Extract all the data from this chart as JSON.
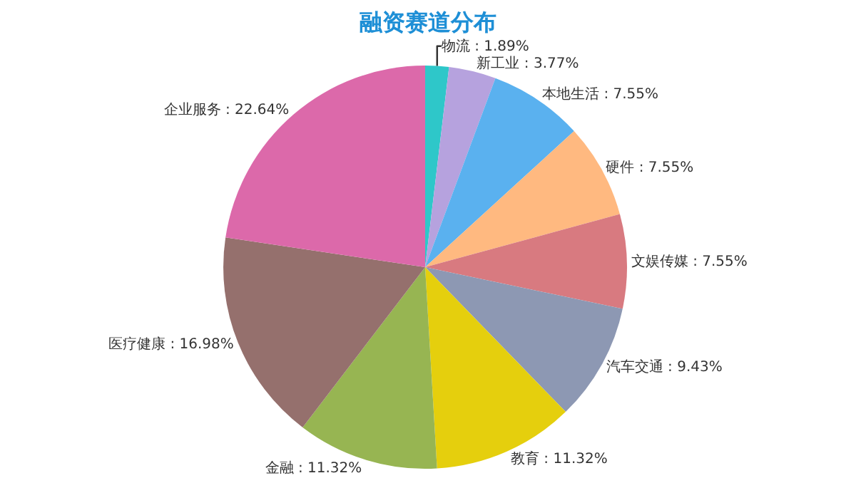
{
  "chart_data": {
    "type": "pie",
    "title": "融资赛道分布",
    "categories": [
      "物流",
      "新工业",
      "本地生活",
      "硬件",
      "文娱传媒",
      "汽车交通",
      "教育",
      "金融",
      "医疗健康",
      "企业服务"
    ],
    "values": [
      1.89,
      3.77,
      7.55,
      7.55,
      7.55,
      9.43,
      11.32,
      11.32,
      16.98,
      22.64
    ],
    "colors": [
      "#2ec7c9",
      "#b6a2de",
      "#5ab1ef",
      "#ffb980",
      "#d87a80",
      "#8d98b3",
      "#e5cf0d",
      "#97b552",
      "#95706d",
      "#dc69aa"
    ],
    "value_labels": [
      "1.89%",
      "3.77%",
      "7.55%",
      "7.55%",
      "7.55%",
      "9.43%",
      "11.32%",
      "11.32%",
      "16.98%",
      "22.64%"
    ],
    "legend": false
  }
}
